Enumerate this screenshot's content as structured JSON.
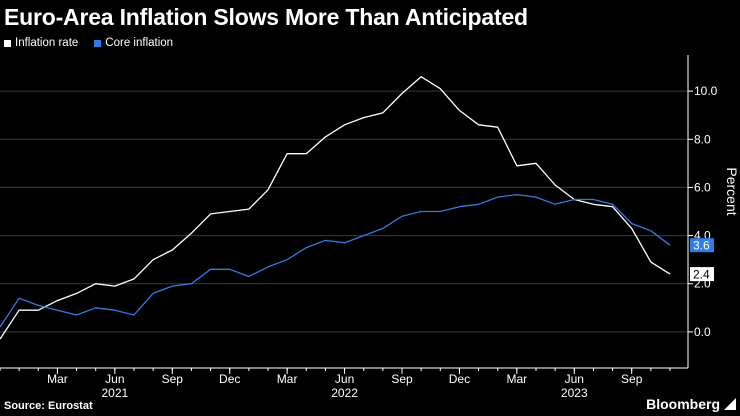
{
  "chart_data": {
    "type": "line",
    "title": "Euro-Area Inflation Slows More Than Anticipated",
    "ylabel": "Percent",
    "ylim": [
      -1.5,
      11.5
    ],
    "yticks": [
      0.0,
      2.0,
      4.0,
      6.0,
      8.0,
      10.0
    ],
    "ytick_labels": [
      "0.0",
      "2.0",
      "4.0",
      "6.0",
      "8.0",
      "10.0"
    ],
    "x": [
      "2020-12",
      "2021-01",
      "2021-02",
      "2021-03",
      "2021-04",
      "2021-05",
      "2021-06",
      "2021-07",
      "2021-08",
      "2021-09",
      "2021-10",
      "2021-11",
      "2021-12",
      "2022-01",
      "2022-02",
      "2022-03",
      "2022-04",
      "2022-05",
      "2022-06",
      "2022-07",
      "2022-08",
      "2022-09",
      "2022-10",
      "2022-11",
      "2022-12",
      "2023-01",
      "2023-02",
      "2023-03",
      "2023-04",
      "2023-05",
      "2023-06",
      "2023-07",
      "2023-08",
      "2023-09",
      "2023-10",
      "2023-11"
    ],
    "xticks": [
      {
        "x": "2021-03",
        "label": "Mar",
        "year": ""
      },
      {
        "x": "2021-06",
        "label": "Jun",
        "year": "2021"
      },
      {
        "x": "2021-09",
        "label": "Sep",
        "year": ""
      },
      {
        "x": "2021-12",
        "label": "Dec",
        "year": ""
      },
      {
        "x": "2022-03",
        "label": "Mar",
        "year": ""
      },
      {
        "x": "2022-06",
        "label": "Jun",
        "year": "2022"
      },
      {
        "x": "2022-09",
        "label": "Sep",
        "year": ""
      },
      {
        "x": "2022-12",
        "label": "Dec",
        "year": ""
      },
      {
        "x": "2023-03",
        "label": "Mar",
        "year": ""
      },
      {
        "x": "2023-06",
        "label": "Jun",
        "year": "2023"
      },
      {
        "x": "2023-09",
        "label": "Sep",
        "year": ""
      }
    ],
    "series": [
      {
        "name": "Inflation rate",
        "color": "#ffffff",
        "values": [
          -0.3,
          0.9,
          0.9,
          1.3,
          1.6,
          2.0,
          1.9,
          2.2,
          3.0,
          3.4,
          4.1,
          4.9,
          5.0,
          5.1,
          5.9,
          7.4,
          7.4,
          8.1,
          8.6,
          8.9,
          9.1,
          9.9,
          10.6,
          10.1,
          9.2,
          8.6,
          8.5,
          6.9,
          7.0,
          6.1,
          5.5,
          5.3,
          5.2,
          4.3,
          2.9,
          2.4
        ],
        "end_label": "2.4"
      },
      {
        "name": "Core inflation",
        "color": "#2f7de1",
        "values": [
          0.2,
          1.4,
          1.1,
          0.9,
          0.7,
          1.0,
          0.9,
          0.7,
          1.6,
          1.9,
          2.0,
          2.6,
          2.6,
          2.3,
          2.7,
          3.0,
          3.5,
          3.8,
          3.7,
          4.0,
          4.3,
          4.8,
          5.0,
          5.0,
          5.2,
          5.3,
          5.6,
          5.7,
          5.6,
          5.3,
          5.5,
          5.5,
          5.3,
          4.5,
          4.2,
          3.6
        ],
        "end_label": "3.6"
      }
    ],
    "grid": true,
    "legend": "top-left"
  },
  "footer": {
    "source": "Source: Eurostat",
    "brand": "Bloomberg"
  }
}
